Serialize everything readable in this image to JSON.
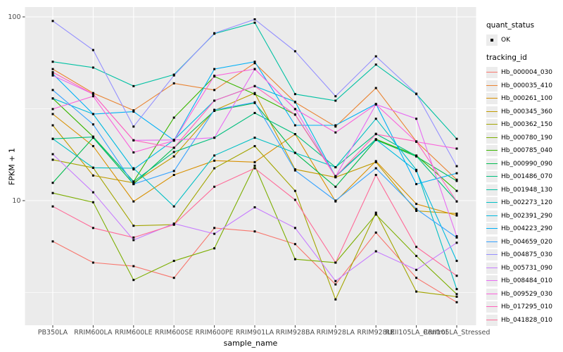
{
  "figure": {
    "y_axis": {
      "title": "FPKM + 1",
      "scale": "log10",
      "ticks": [
        {
          "label": "100",
          "value": 100
        },
        {
          "label": "10",
          "value": 10
        }
      ]
    },
    "x_axis": {
      "title": "sample_name"
    },
    "panel": {
      "bg": "#EBEBEB",
      "grid_color": "#FFFFFF",
      "minor_values": [
        31.6,
        3.16
      ],
      "point_color": "#000000"
    }
  },
  "legend": {
    "quant_title": "quant_status",
    "quant_items": [
      {
        "label": "OK",
        "marker_color": "#000000"
      }
    ],
    "tracking_title": "tracking_id"
  },
  "chart_data": {
    "type": "line",
    "title": "",
    "xlabel": "sample_name",
    "ylabel": "FPKM + 1",
    "y_scale": "log10",
    "ylim": [
      2.1,
      113
    ],
    "grid": true,
    "legend_position": "right",
    "marker": "black-square",
    "categories": [
      "PB350LA",
      "RRIM600LA",
      "RRIM600LE",
      "RRIM600SE",
      "RRIM600PE",
      "RRIM901LA",
      "RRIM928BA",
      "RRIM928LA",
      "RRIM928LE",
      "RRII105LA_Control",
      "RRII105LA_Stressed"
    ],
    "series": [
      {
        "name": "Hb_000004_030",
        "color": "#F8766D",
        "values": [
          6.0,
          4.6,
          4.4,
          3.8,
          7.1,
          6.8,
          5.8,
          3.5,
          6.7,
          3.8,
          2.8
        ]
      },
      {
        "name": "Hb_000035_410",
        "color": "#EA8331",
        "values": [
          52,
          38.5,
          31,
          43.5,
          40,
          56,
          34.3,
          25.3,
          41,
          21,
          13
        ]
      },
      {
        "name": "Hb_000261_100",
        "color": "#D89000",
        "values": [
          29.6,
          19.8,
          9.9,
          13.8,
          16.5,
          16.2,
          23,
          9.9,
          16.4,
          9.6,
          8.3
        ]
      },
      {
        "name": "Hb_000345_360",
        "color": "#C09B00",
        "values": [
          25.7,
          13.7,
          12.5,
          17.4,
          31,
          38.5,
          14.8,
          13.4,
          16.2,
          8.8,
          8.5
        ]
      },
      {
        "name": "Hb_000362_150",
        "color": "#A3A500",
        "values": [
          16.7,
          15.1,
          7.3,
          7.4,
          15,
          19.8,
          11.3,
          2.9,
          8.6,
          3.2,
          3.0
        ]
      },
      {
        "name": "Hb_000780_190",
        "color": "#7CAE00",
        "values": [
          11,
          9.8,
          3.7,
          4.7,
          5.5,
          15.5,
          4.8,
          4.6,
          8.4,
          5.0,
          3.1
        ]
      },
      {
        "name": "Hb_000785_040",
        "color": "#39B600",
        "values": [
          36,
          22.3,
          12.7,
          28.3,
          47.4,
          38,
          29.4,
          13.6,
          21.6,
          17.6,
          11.3
        ]
      },
      {
        "name": "Hb_000990_090",
        "color": "#00BB4E",
        "values": [
          12.5,
          22,
          12.3,
          19.4,
          30.8,
          34,
          18.2,
          11.9,
          21.4,
          17.4,
          12.8
        ]
      },
      {
        "name": "Hb_001486_070",
        "color": "#00BF7D",
        "values": [
          21.7,
          22.2,
          12.7,
          18.4,
          22,
          30,
          23,
          15.2,
          23.1,
          17.5,
          9.9
        ]
      },
      {
        "name": "Hb_001948_130",
        "color": "#00C1A3",
        "values": [
          57,
          53,
          42,
          48.5,
          81,
          93,
          38,
          35,
          55,
          38,
          21.7
        ]
      },
      {
        "name": "Hb_002273_120",
        "color": "#00BFC4",
        "values": [
          21.7,
          15.1,
          15,
          9.3,
          17.6,
          22,
          18.2,
          15.2,
          27.9,
          14.7,
          3.3
        ]
      },
      {
        "name": "Hb_002391_290",
        "color": "#00BAE0",
        "values": [
          36,
          29.6,
          14.8,
          21.4,
          35,
          42,
          34.5,
          13.5,
          21.5,
          14.5,
          4.7
        ]
      },
      {
        "name": "Hb_004223_290",
        "color": "#00B0F6",
        "values": [
          49,
          29.6,
          30.5,
          21.3,
          52,
          57,
          25.7,
          25.7,
          33.6,
          12.3,
          14.1
        ]
      },
      {
        "name": "Hb_004659_020",
        "color": "#35A2FF",
        "values": [
          40,
          26,
          12.3,
          14.5,
          31.2,
          34.3,
          14.6,
          10,
          15,
          9.0,
          6.3
        ]
      },
      {
        "name": "Hb_004875_030",
        "color": "#9590FF",
        "values": [
          95,
          66,
          25.3,
          48,
          81.5,
          97,
          65,
          37,
          61,
          38.2,
          15.4
        ]
      },
      {
        "name": "Hb_005731_090",
        "color": "#C77CFF",
        "values": [
          17.9,
          11.1,
          6.1,
          7.5,
          6.6,
          9.2,
          7.1,
          3.65,
          5.3,
          4.2,
          5.9
        ]
      },
      {
        "name": "Hb_008484_010",
        "color": "#E76BF3",
        "values": [
          48,
          38,
          21.3,
          21.4,
          22,
          52,
          31.5,
          13.5,
          33.4,
          27.9,
          6.4
        ]
      },
      {
        "name": "Hb_009529_030",
        "color": "#FA62DB",
        "values": [
          31.5,
          37,
          18.3,
          21.2,
          47.8,
          52,
          31.5,
          23.5,
          33.4,
          20.9,
          19.2
        ]
      },
      {
        "name": "Hb_017295_010",
        "color": "#FF62BC",
        "values": [
          50,
          38,
          21.3,
          19.4,
          35,
          42,
          29.4,
          13.5,
          23,
          21,
          9.9
        ]
      },
      {
        "name": "Hb_041828_010",
        "color": "#FF6A98",
        "values": [
          9.3,
          7.1,
          6.3,
          7.4,
          11.9,
          15,
          10.1,
          4.6,
          13.8,
          5.6,
          3.9
        ]
      }
    ]
  }
}
